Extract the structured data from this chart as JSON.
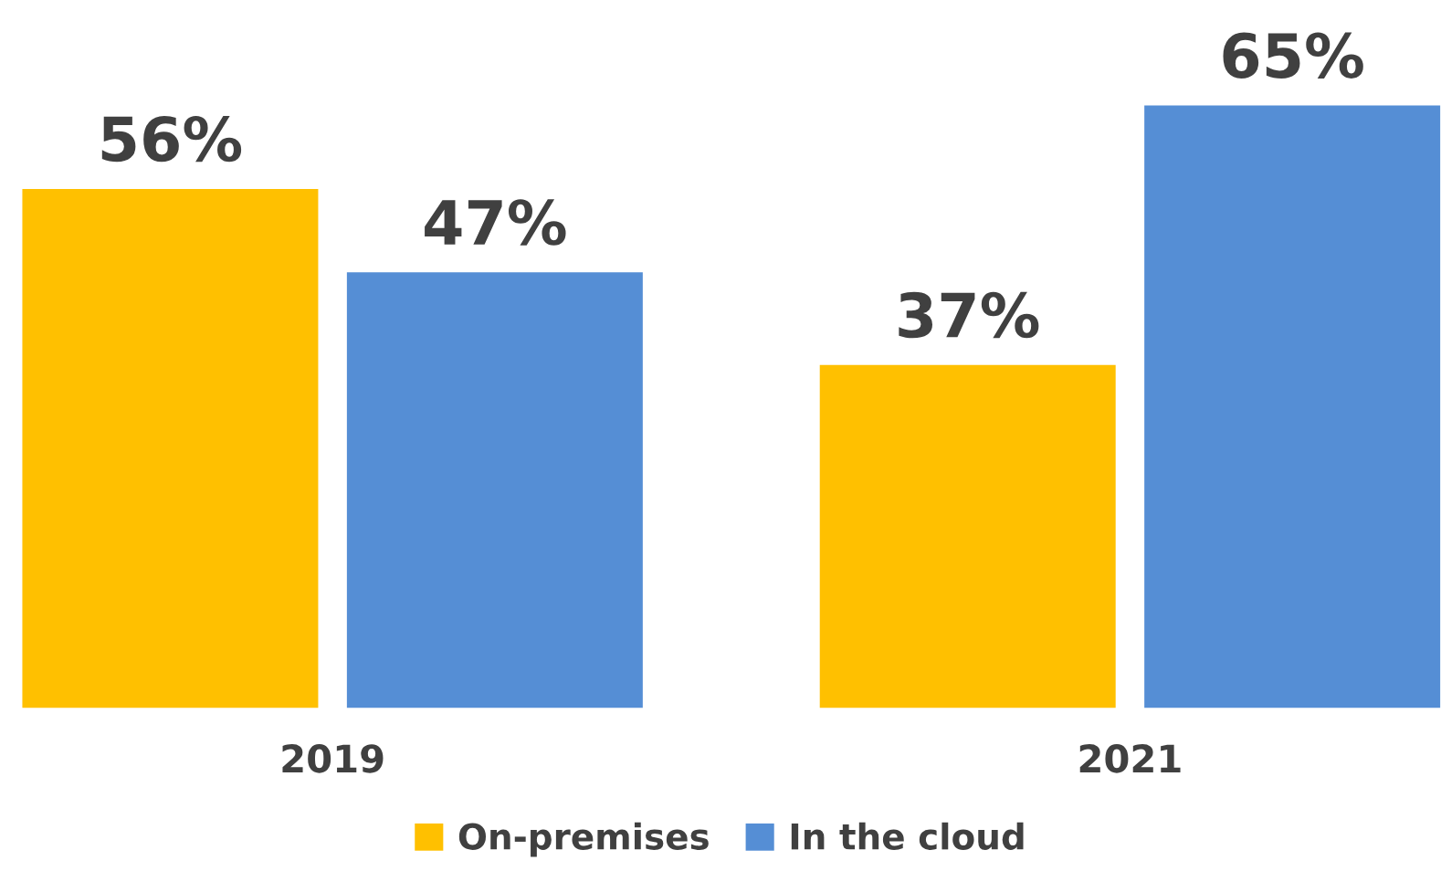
{
  "chart_data": {
    "type": "bar",
    "categories": [
      "2019",
      "2021"
    ],
    "series": [
      {
        "name": "On-premises",
        "color": "#ffc000",
        "values": [
          56,
          37
        ],
        "value_labels": [
          "56%",
          "37%"
        ]
      },
      {
        "name": "In the cloud",
        "color": "#558ed5",
        "values": [
          47,
          65
        ],
        "value_labels": [
          "47%",
          "65%"
        ]
      }
    ],
    "legend": "bottom"
  }
}
